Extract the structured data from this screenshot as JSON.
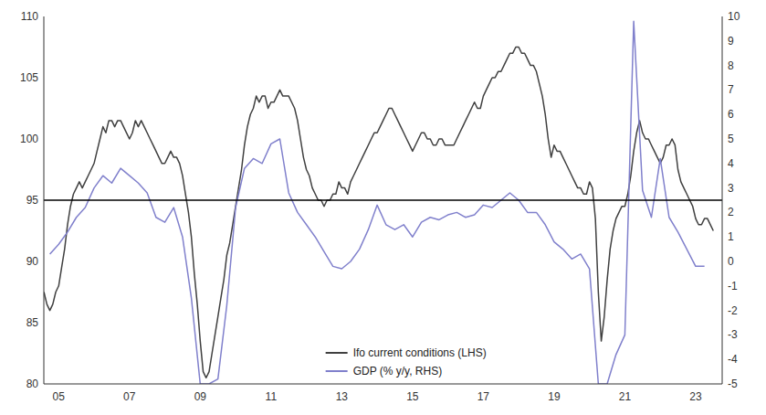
{
  "chart_data": {
    "type": "line",
    "xlim": [
      2004.58,
      2023.75
    ],
    "xticks": [
      {
        "value": 2005,
        "label": "05"
      },
      {
        "value": 2007,
        "label": "07"
      },
      {
        "value": 2009,
        "label": "09"
      },
      {
        "value": 2011,
        "label": "11"
      },
      {
        "value": 2013,
        "label": "13"
      },
      {
        "value": 2015,
        "label": "15"
      },
      {
        "value": 2017,
        "label": "17"
      },
      {
        "value": 2019,
        "label": "19"
      },
      {
        "value": 2021,
        "label": "21"
      },
      {
        "value": 2023,
        "label": "23"
      }
    ],
    "ylim": [
      80,
      110
    ],
    "yticks": [
      80,
      85,
      90,
      95,
      100,
      105,
      110
    ],
    "y2lim": [
      -5,
      10
    ],
    "y2ticks": [
      -5,
      -4,
      -3,
      -2,
      -1,
      0,
      1,
      2,
      3,
      4,
      5,
      6,
      7,
      8,
      9,
      10
    ],
    "grid": false,
    "legend": "bottom",
    "hline": {
      "y": 95,
      "color": "#000000"
    },
    "series": [
      {
        "name": "Ifo current conditions (LHS)",
        "color": "#404040",
        "x": [
          2004.583,
          2004.667,
          2004.75,
          2004.833,
          2004.917,
          2005.0,
          2005.083,
          2005.167,
          2005.25,
          2005.333,
          2005.417,
          2005.5,
          2005.583,
          2005.667,
          2005.75,
          2005.833,
          2005.917,
          2006.0,
          2006.083,
          2006.167,
          2006.25,
          2006.333,
          2006.417,
          2006.5,
          2006.583,
          2006.667,
          2006.75,
          2006.833,
          2006.917,
          2007.0,
          2007.083,
          2007.167,
          2007.25,
          2007.333,
          2007.417,
          2007.5,
          2007.583,
          2007.667,
          2007.75,
          2007.833,
          2007.917,
          2008.0,
          2008.083,
          2008.167,
          2008.25,
          2008.333,
          2008.417,
          2008.5,
          2008.583,
          2008.667,
          2008.75,
          2008.833,
          2008.917,
          2009.0,
          2009.083,
          2009.167,
          2009.25,
          2009.333,
          2009.417,
          2009.5,
          2009.583,
          2009.667,
          2009.75,
          2009.833,
          2009.917,
          2010.0,
          2010.083,
          2010.167,
          2010.25,
          2010.333,
          2010.417,
          2010.5,
          2010.583,
          2010.667,
          2010.75,
          2010.833,
          2010.917,
          2011.0,
          2011.083,
          2011.167,
          2011.25,
          2011.333,
          2011.417,
          2011.5,
          2011.583,
          2011.667,
          2011.75,
          2011.833,
          2011.917,
          2012.0,
          2012.083,
          2012.167,
          2012.25,
          2012.333,
          2012.417,
          2012.5,
          2012.583,
          2012.667,
          2012.75,
          2012.833,
          2012.917,
          2013.0,
          2013.083,
          2013.167,
          2013.25,
          2013.333,
          2013.417,
          2013.5,
          2013.583,
          2013.667,
          2013.75,
          2013.833,
          2013.917,
          2014.0,
          2014.083,
          2014.167,
          2014.25,
          2014.333,
          2014.417,
          2014.5,
          2014.583,
          2014.667,
          2014.75,
          2014.833,
          2014.917,
          2015.0,
          2015.083,
          2015.167,
          2015.25,
          2015.333,
          2015.417,
          2015.5,
          2015.583,
          2015.667,
          2015.75,
          2015.833,
          2015.917,
          2016.0,
          2016.083,
          2016.167,
          2016.25,
          2016.333,
          2016.417,
          2016.5,
          2016.583,
          2016.667,
          2016.75,
          2016.833,
          2016.917,
          2017.0,
          2017.083,
          2017.167,
          2017.25,
          2017.333,
          2017.417,
          2017.5,
          2017.583,
          2017.667,
          2017.75,
          2017.833,
          2017.917,
          2018.0,
          2018.083,
          2018.167,
          2018.25,
          2018.333,
          2018.417,
          2018.5,
          2018.583,
          2018.667,
          2018.75,
          2018.833,
          2018.917,
          2019.0,
          2019.083,
          2019.167,
          2019.25,
          2019.333,
          2019.417,
          2019.5,
          2019.583,
          2019.667,
          2019.75,
          2019.833,
          2019.917,
          2020.0,
          2020.083,
          2020.167,
          2020.25,
          2020.333,
          2020.417,
          2020.5,
          2020.583,
          2020.667,
          2020.75,
          2020.833,
          2020.917,
          2021.0,
          2021.083,
          2021.167,
          2021.25,
          2021.333,
          2021.417,
          2021.5,
          2021.583,
          2021.667,
          2021.75,
          2021.833,
          2021.917,
          2022.0,
          2022.083,
          2022.167,
          2022.25,
          2022.333,
          2022.417,
          2022.5,
          2022.583,
          2022.667,
          2022.75,
          2022.833,
          2022.917,
          2023.0,
          2023.083,
          2023.167,
          2023.25,
          2023.333,
          2023.417,
          2023.5
        ],
        "values": [
          87.5,
          86.5,
          86.0,
          86.5,
          87.5,
          88.0,
          89.5,
          91.0,
          93.0,
          94.5,
          95.5,
          96.0,
          96.5,
          96.0,
          96.5,
          97.0,
          97.5,
          98.0,
          99.0,
          100.0,
          101.0,
          100.5,
          101.5,
          101.5,
          101.0,
          101.5,
          101.5,
          101.0,
          100.5,
          100.0,
          100.5,
          101.5,
          101.0,
          101.5,
          101.0,
          100.5,
          100.0,
          99.5,
          99.0,
          98.5,
          98.0,
          98.0,
          98.5,
          99.0,
          98.5,
          98.5,
          98.0,
          97.0,
          95.5,
          94.0,
          92.0,
          89.0,
          86.5,
          83.5,
          81.0,
          80.5,
          81.0,
          82.5,
          84.0,
          85.5,
          87.0,
          88.5,
          90.5,
          91.5,
          93.0,
          94.5,
          96.0,
          97.5,
          99.5,
          101.0,
          102.0,
          102.5,
          103.5,
          103.0,
          103.5,
          103.5,
          102.5,
          103.0,
          103.0,
          103.5,
          104.0,
          103.5,
          103.5,
          103.5,
          103.0,
          102.5,
          101.5,
          100.0,
          98.5,
          97.5,
          97.0,
          96.0,
          95.5,
          95.0,
          95.0,
          94.5,
          95.0,
          95.0,
          95.5,
          95.5,
          96.5,
          96.0,
          96.0,
          95.5,
          96.5,
          97.0,
          97.5,
          98.0,
          98.5,
          99.0,
          99.5,
          100.0,
          100.5,
          100.5,
          101.0,
          101.5,
          102.0,
          102.5,
          102.5,
          102.0,
          101.5,
          101.0,
          100.5,
          100.0,
          99.5,
          99.0,
          99.5,
          100.0,
          100.5,
          100.5,
          100.0,
          100.0,
          99.5,
          99.5,
          100.0,
          100.0,
          99.5,
          99.5,
          99.5,
          99.5,
          100.0,
          100.5,
          101.0,
          101.5,
          102.0,
          102.5,
          103.0,
          102.5,
          102.5,
          103.5,
          104.0,
          104.5,
          105.0,
          105.0,
          105.5,
          105.5,
          106.0,
          106.5,
          107.0,
          107.0,
          107.5,
          107.5,
          107.0,
          107.0,
          106.5,
          106.0,
          106.0,
          105.5,
          104.5,
          103.5,
          102.0,
          100.0,
          98.5,
          99.5,
          99.0,
          99.0,
          98.5,
          98.0,
          97.5,
          97.0,
          96.5,
          96.0,
          96.0,
          95.5,
          95.5,
          96.5,
          96.0,
          93.5,
          87.5,
          83.5,
          85.5,
          88.5,
          91.0,
          92.5,
          93.5,
          94.0,
          94.5,
          94.5,
          95.5,
          97.0,
          99.0,
          100.5,
          101.5,
          100.5,
          100.0,
          100.0,
          99.5,
          99.0,
          98.5,
          98.0,
          98.5,
          99.5,
          99.5,
          100.0,
          99.5,
          97.5,
          96.5,
          96.0,
          95.5,
          95.0,
          94.5,
          93.5,
          93.0,
          93.0,
          93.5,
          93.5,
          93.0,
          92.5
        ]
      },
      {
        "name": "GDP (% y/y, RHS)",
        "color": "#8080cc",
        "axis": "y2",
        "x": [
          2004.75,
          2005.0,
          2005.25,
          2005.5,
          2005.75,
          2006.0,
          2006.25,
          2006.5,
          2006.75,
          2007.0,
          2007.25,
          2007.5,
          2007.75,
          2008.0,
          2008.25,
          2008.5,
          2008.75,
          2009.0,
          2009.25,
          2009.5,
          2009.75,
          2010.0,
          2010.25,
          2010.5,
          2010.75,
          2011.0,
          2011.25,
          2011.5,
          2011.75,
          2012.0,
          2012.25,
          2012.5,
          2012.75,
          2013.0,
          2013.25,
          2013.5,
          2013.75,
          2014.0,
          2014.25,
          2014.5,
          2014.75,
          2015.0,
          2015.25,
          2015.5,
          2015.75,
          2016.0,
          2016.25,
          2016.5,
          2016.75,
          2017.0,
          2017.25,
          2017.5,
          2017.75,
          2018.0,
          2018.25,
          2018.5,
          2018.75,
          2019.0,
          2019.25,
          2019.5,
          2019.75,
          2020.0,
          2020.25,
          2020.5,
          2020.75,
          2021.0,
          2021.25,
          2021.5,
          2021.75,
          2022.0,
          2022.25,
          2022.5,
          2022.75,
          2023.0,
          2023.25
        ],
        "values": [
          0.3,
          0.7,
          1.2,
          1.8,
          2.2,
          3.0,
          3.5,
          3.2,
          3.8,
          3.5,
          3.2,
          2.8,
          1.8,
          1.6,
          2.2,
          1.0,
          -1.5,
          -5.0,
          -5.0,
          -4.8,
          -1.8,
          2.2,
          3.8,
          4.2,
          4.0,
          4.8,
          5.0,
          2.8,
          2.0,
          1.5,
          1.0,
          0.4,
          -0.2,
          -0.3,
          0.0,
          0.5,
          1.3,
          2.3,
          1.5,
          1.3,
          1.5,
          1.0,
          1.6,
          1.8,
          1.7,
          1.9,
          2.0,
          1.8,
          1.9,
          2.3,
          2.2,
          2.5,
          2.8,
          2.5,
          2.0,
          2.0,
          1.5,
          0.8,
          0.5,
          0.1,
          0.3,
          -0.3,
          -5.0,
          -5.0,
          -3.8,
          -3.0,
          9.8,
          2.9,
          1.8,
          4.2,
          1.8,
          1.2,
          0.5,
          -0.2,
          -0.2
        ]
      }
    ]
  }
}
